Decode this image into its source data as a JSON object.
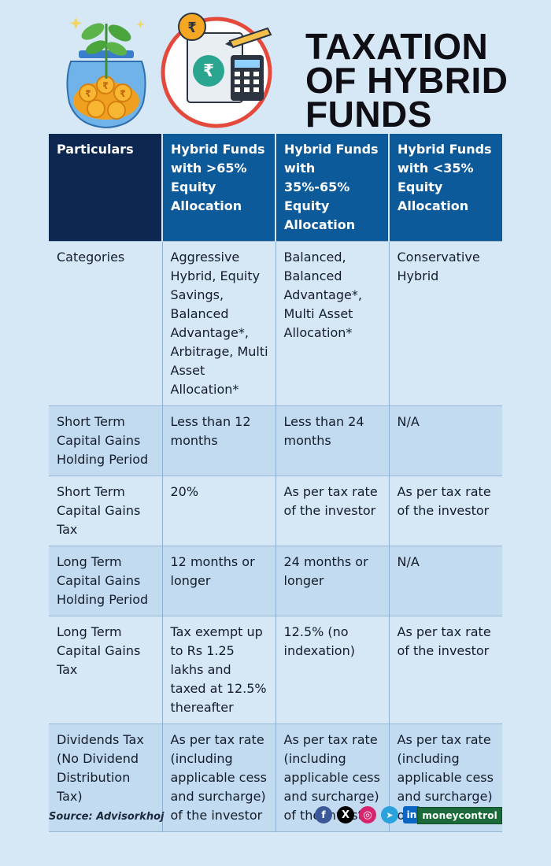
{
  "title_lines": [
    "TAXATION",
    "OF HYBRID",
    "FUNDS"
  ],
  "illustration": {
    "coin_symbol": "₹",
    "rupee_symbol": "₹"
  },
  "table": {
    "headers": [
      "Particulars",
      "Hybrid Funds with >65% Equity Allocation",
      "Hybrid Funds with 35%-65% Equity Allocation",
      "Hybrid Funds with <35% Equity Allocation"
    ],
    "rows": [
      [
        "Categories",
        "Aggressive Hybrid, Equity Savings, Balanced Advantage*, Arbitrage, Multi Asset Allocation*",
        "Balanced, Balanced Advantage*, Multi Asset Allocation*",
        "Conservative Hybrid"
      ],
      [
        "Short Term Capital Gains Holding Period",
        "Less than 12 months",
        "Less than 24 months",
        "N/A"
      ],
      [
        "Short Term Capital Gains Tax",
        "20%",
        "As per tax rate of the investor",
        "As per tax rate of the investor"
      ],
      [
        "Long Term Capital Gains Holding Period",
        "12 months or longer",
        "24 months or longer",
        "N/A"
      ],
      [
        "Long Term Capital Gains Tax",
        "Tax exempt up to Rs 1.25 lakhs and taxed at 12.5% thereafter",
        "12.5% (no indexation)",
        "As per tax rate of the investor"
      ],
      [
        "Dividends Tax (No Dividend Distribution Tax)",
        "As per tax rate (including applicable cess and surcharge) of the investor",
        "As per tax rate (including applicable cess and surcharge) of the investor",
        "As per tax rate (including applicable cess and surcharge) of the investor"
      ]
    ]
  },
  "footer": {
    "source": "Source: Advisorkhoj",
    "social": [
      {
        "name": "facebook",
        "glyph": "f"
      },
      {
        "name": "x",
        "glyph": "X"
      },
      {
        "name": "instagram",
        "glyph": "◎"
      },
      {
        "name": "telegram",
        "glyph": "➤"
      },
      {
        "name": "linkedin",
        "glyph": "in"
      }
    ],
    "brand": "moneycontrol"
  },
  "colors": {
    "background": "#d6e7f6",
    "header_dark": "#0d2750",
    "header_blue": "#0d5a9a",
    "row_alt": "#c3dbf1",
    "title": "#0e0e14"
  }
}
